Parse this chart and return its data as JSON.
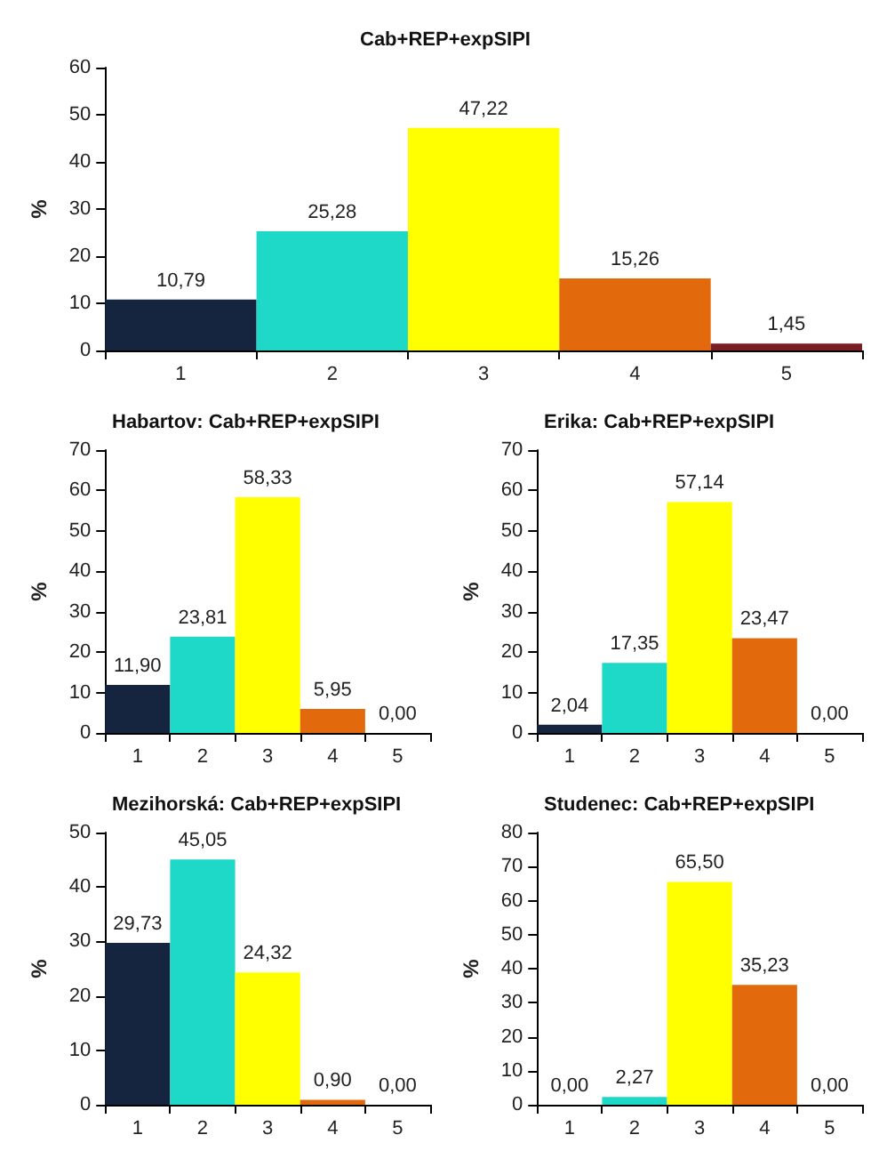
{
  "chart_data": [
    {
      "type": "bar",
      "title": "Cab+REP+expSIPI",
      "ylabel": "%",
      "categories": [
        "1",
        "2",
        "3",
        "4",
        "5"
      ],
      "values": [
        10.79,
        25.28,
        47.22,
        15.26,
        1.45
      ],
      "colors": [
        "#15243f",
        "#1ed8c8",
        "#ffff00",
        "#e2690c",
        "#7a1e24"
      ],
      "value_labels": [
        "10,79",
        "25,28",
        "47,22",
        "15,26",
        "1,45"
      ],
      "ylim": [
        0,
        60
      ],
      "yticks": [
        0,
        10,
        20,
        30,
        40,
        50,
        60
      ]
    },
    {
      "type": "bar",
      "title": "Habartov: Cab+REP+expSIPI",
      "ylabel": "%",
      "categories": [
        "1",
        "2",
        "3",
        "4",
        "5"
      ],
      "values": [
        11.9,
        23.81,
        58.33,
        5.95,
        0
      ],
      "colors": [
        "#15243f",
        "#1ed8c8",
        "#ffff00",
        "#e2690c",
        "#7a1e24"
      ],
      "value_labels": [
        "11,90",
        "23,81",
        "58,33",
        "5,95",
        "0,00"
      ],
      "ylim": [
        0,
        70
      ],
      "yticks": [
        0,
        10,
        20,
        30,
        40,
        50,
        60,
        70
      ]
    },
    {
      "type": "bar",
      "title": "Erika: Cab+REP+expSIPI",
      "ylabel": "%",
      "categories": [
        "1",
        "2",
        "3",
        "4",
        "5"
      ],
      "values": [
        2.04,
        17.35,
        57.14,
        23.47,
        0
      ],
      "colors": [
        "#15243f",
        "#1ed8c8",
        "#ffff00",
        "#e2690c",
        "#7a1e24"
      ],
      "value_labels": [
        "2,04",
        "17,35",
        "57,14",
        "23,47",
        "0,00"
      ],
      "ylim": [
        0,
        70
      ],
      "yticks": [
        0,
        10,
        20,
        30,
        40,
        50,
        60,
        70
      ]
    },
    {
      "type": "bar",
      "title": "Mezihorská: Cab+REP+expSIPI",
      "ylabel": "%",
      "categories": [
        "1",
        "2",
        "3",
        "4",
        "5"
      ],
      "values": [
        29.73,
        45.05,
        24.32,
        0.9,
        0
      ],
      "colors": [
        "#15243f",
        "#1ed8c8",
        "#ffff00",
        "#e2690c",
        "#7a1e24"
      ],
      "value_labels": [
        "29,73",
        "45,05",
        "24,32",
        "0,90",
        "0,00"
      ],
      "ylim": [
        0,
        50
      ],
      "yticks": [
        0,
        10,
        20,
        30,
        40,
        50
      ]
    },
    {
      "type": "bar",
      "title": "Studenec: Cab+REP+expSIPI",
      "ylabel": "%",
      "categories": [
        "1",
        "2",
        "3",
        "4",
        "5"
      ],
      "values": [
        0,
        2.27,
        65.5,
        35.23,
        0
      ],
      "colors": [
        "#15243f",
        "#1ed8c8",
        "#ffff00",
        "#e2690c",
        "#7a1e24"
      ],
      "value_labels": [
        "0,00",
        "2,27",
        "65,50",
        "35,23",
        "0,00"
      ],
      "ylim": [
        0,
        80
      ],
      "yticks": [
        0,
        10,
        20,
        30,
        40,
        50,
        60,
        70,
        80
      ]
    }
  ]
}
